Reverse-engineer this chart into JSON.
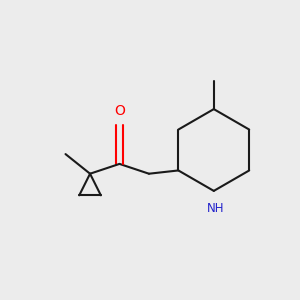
{
  "bg_color": "#ececec",
  "bond_color": "#1a1a1a",
  "oxygen_color": "#ff0000",
  "nitrogen_color": "#2222cc",
  "line_width": 1.5,
  "figsize": [
    3.0,
    3.0
  ],
  "dpi": 100
}
